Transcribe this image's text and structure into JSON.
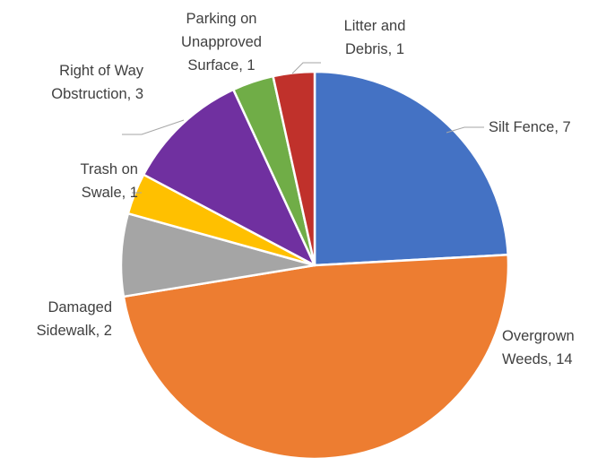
{
  "chart_data": {
    "type": "pie",
    "title": "",
    "start_angle_deg": 0,
    "direction": "clockwise",
    "legend": "none",
    "slices": [
      {
        "label_lines": [
          "Silt Fence, 7"
        ],
        "category": "Silt Fence",
        "value": 7,
        "color": "#4472C4"
      },
      {
        "label_lines": [
          "Overgrown",
          "Weeds, 14"
        ],
        "category": "Overgrown Weeds",
        "value": 14,
        "color": "#ED7D31"
      },
      {
        "label_lines": [
          "Damaged",
          "Sidewalk, 2"
        ],
        "category": "Damaged Sidewalk",
        "value": 2,
        "color": "#A5A5A5"
      },
      {
        "label_lines": [
          "Trash on",
          "Swale, 1"
        ],
        "category": "Trash on Swale",
        "value": 1,
        "color": "#FFC000"
      },
      {
        "label_lines": [
          "Right of Way",
          "Obstruction, 3"
        ],
        "category": "Right of Way Obstruction",
        "value": 3,
        "color": "#7030A0"
      },
      {
        "label_lines": [
          "Parking on",
          "Unapproved",
          "Surface, 1"
        ],
        "category": "Parking on Unapproved Surface",
        "value": 1,
        "color": "#70AD47"
      },
      {
        "label_lines": [
          "Litter and",
          "Debris, 1"
        ],
        "category": "Litter and Debris",
        "value": 1,
        "color": "#C0312B"
      }
    ]
  }
}
